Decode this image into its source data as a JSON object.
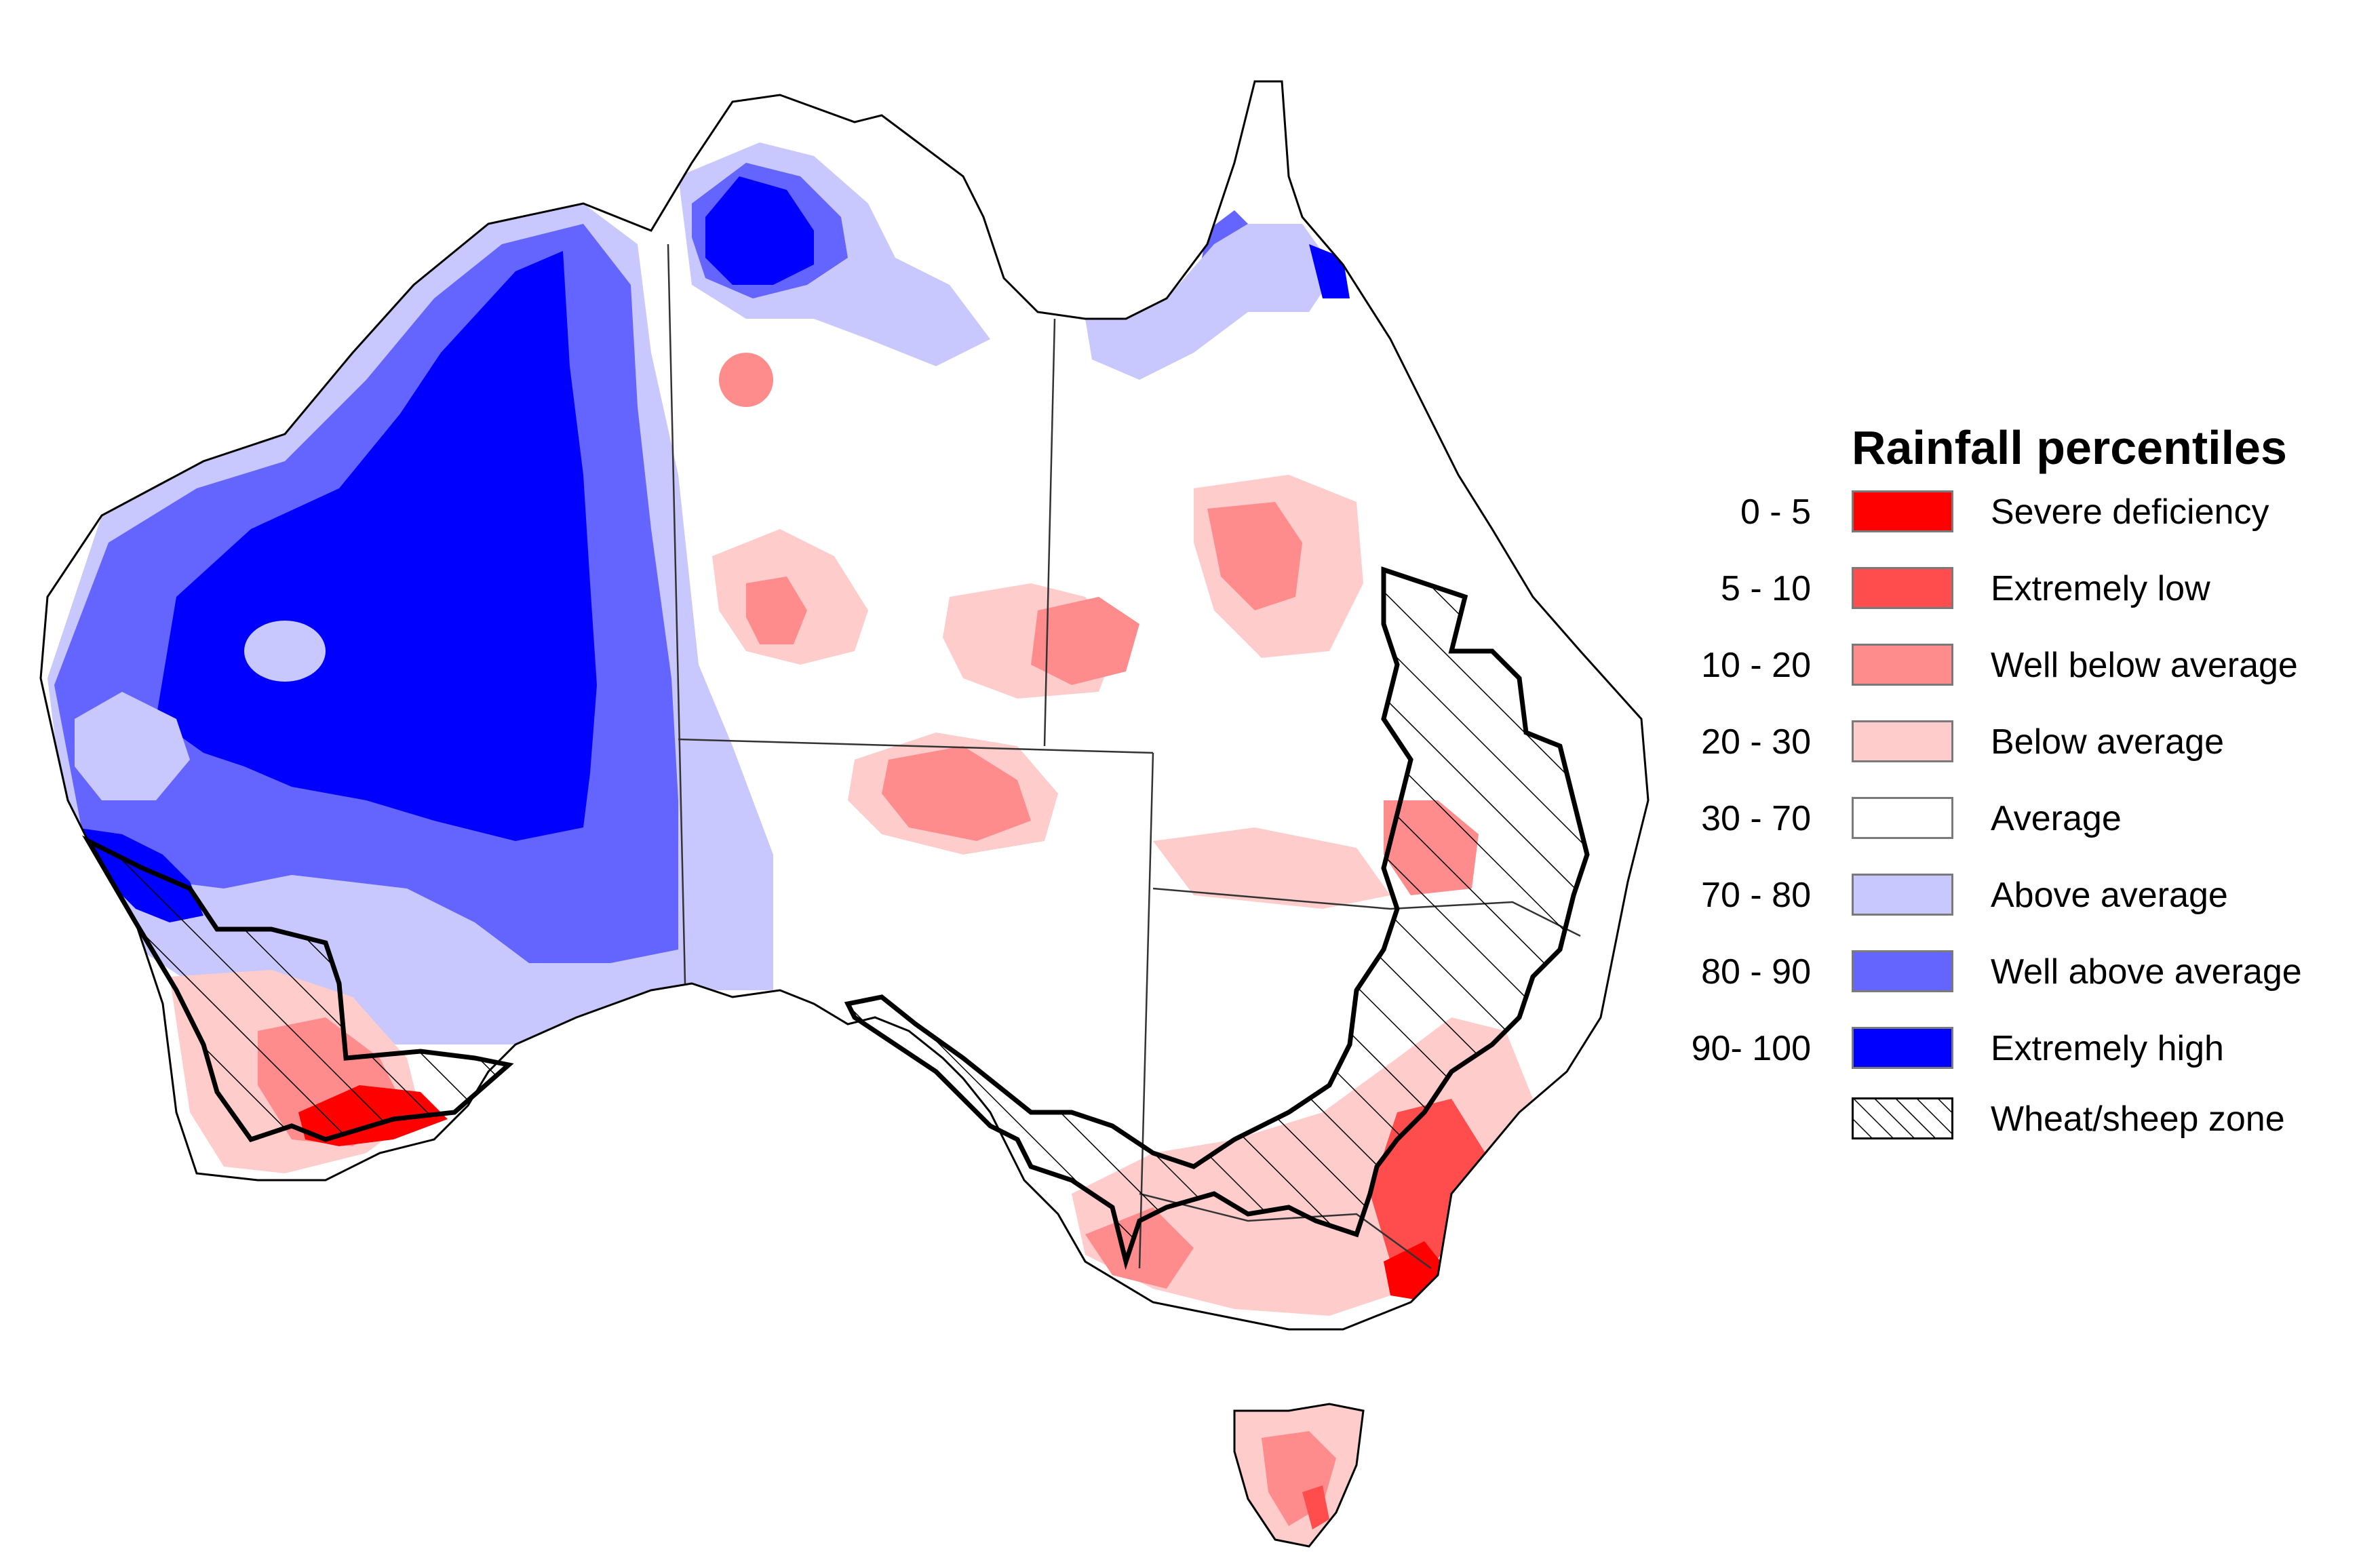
{
  "legend": {
    "title": "Rainfall percentiles",
    "items": [
      {
        "range": "0 - 5",
        "label": "Severe deficiency",
        "color": "#ff0000"
      },
      {
        "range": "5 - 10",
        "label": "Extremely low",
        "color": "#ff4d4d"
      },
      {
        "range": "10 - 20",
        "label": "Well below average",
        "color": "#ff8c8c"
      },
      {
        "range": "20 - 30",
        "label": "Below average",
        "color": "#ffcccc"
      },
      {
        "range": "30 - 70",
        "label": "Average",
        "color": "#ffffff"
      },
      {
        "range": "70 - 80",
        "label": "Above average",
        "color": "#c8c8ff"
      },
      {
        "range": "80 - 90",
        "label": "Well above average",
        "color": "#6464ff"
      },
      {
        "range": "90- 100",
        "label": "Extremely high",
        "color": "#0000ff"
      }
    ],
    "zone_label": "Wheat/sheep zone"
  }
}
